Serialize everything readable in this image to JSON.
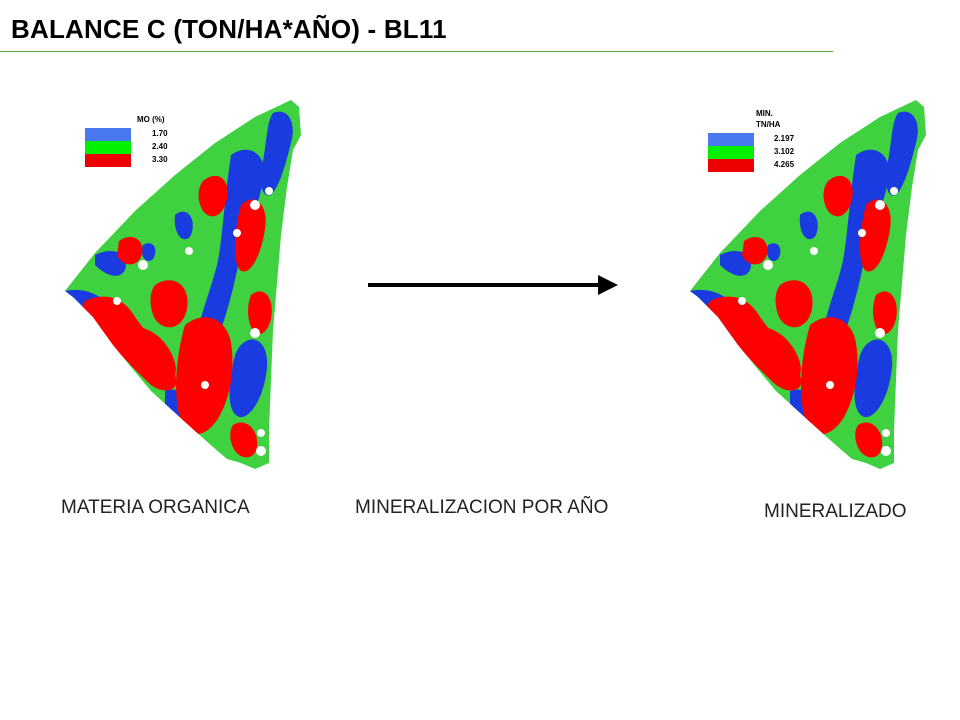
{
  "title": "BALANCE C (TON/HA*AÑO) - BL11",
  "colors": {
    "low": "#1a3be0",
    "mid": "#3fd13f",
    "high": "#ff0000",
    "title_rule": "#5f9e3a",
    "legend_low": "#4a78f0",
    "legend_mid": "#00f000",
    "legend_high": "#ee0000"
  },
  "maps": [
    {
      "caption": "MATERIA ORGANICA",
      "legend": {
        "title_lines": [
          "MO (%)"
        ],
        "items": [
          {
            "value": "1.70",
            "color_key": "legend_low"
          },
          {
            "value": "2.40",
            "color_key": "legend_mid"
          },
          {
            "value": "3.30",
            "color_key": "legend_high"
          }
        ]
      }
    },
    {
      "caption": "MINERALIZADO",
      "legend": {
        "title_lines": [
          "MIN.",
          "TN/HA"
        ],
        "items": [
          {
            "value": "2.197",
            "color_key": "legend_low"
          },
          {
            "value": "3.102",
            "color_key": "legend_mid"
          },
          {
            "value": "4.265",
            "color_key": "legend_high"
          }
        ]
      }
    }
  ],
  "arrow_caption": "MINERALIZACION POR AÑO"
}
